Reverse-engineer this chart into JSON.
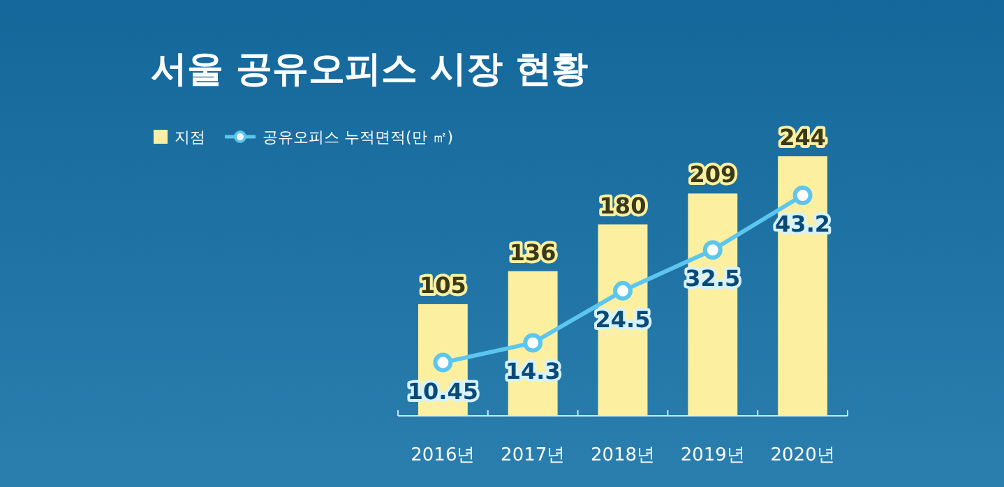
{
  "chart_data": {
    "type": "bar",
    "title": "서울 공유오피스 시장 현황",
    "categories": [
      "2016년",
      "2017년",
      "2018년",
      "2019년",
      "2020년"
    ],
    "series": [
      {
        "name": "지점",
        "color": "#fcf0a0",
        "values": [
          105,
          136,
          180,
          209,
          244
        ]
      },
      {
        "name": "공유오피스 누적면적(만 ㎡)",
        "type": "line",
        "axis": "y2",
        "color": "#5cc6ee",
        "values": [
          10.45,
          14.3,
          24.5,
          32.5,
          43.2
        ]
      }
    ],
    "data_labels": true,
    "legend": "top left",
    "marker": "circle",
    "tick_labels": "x"
  }
}
